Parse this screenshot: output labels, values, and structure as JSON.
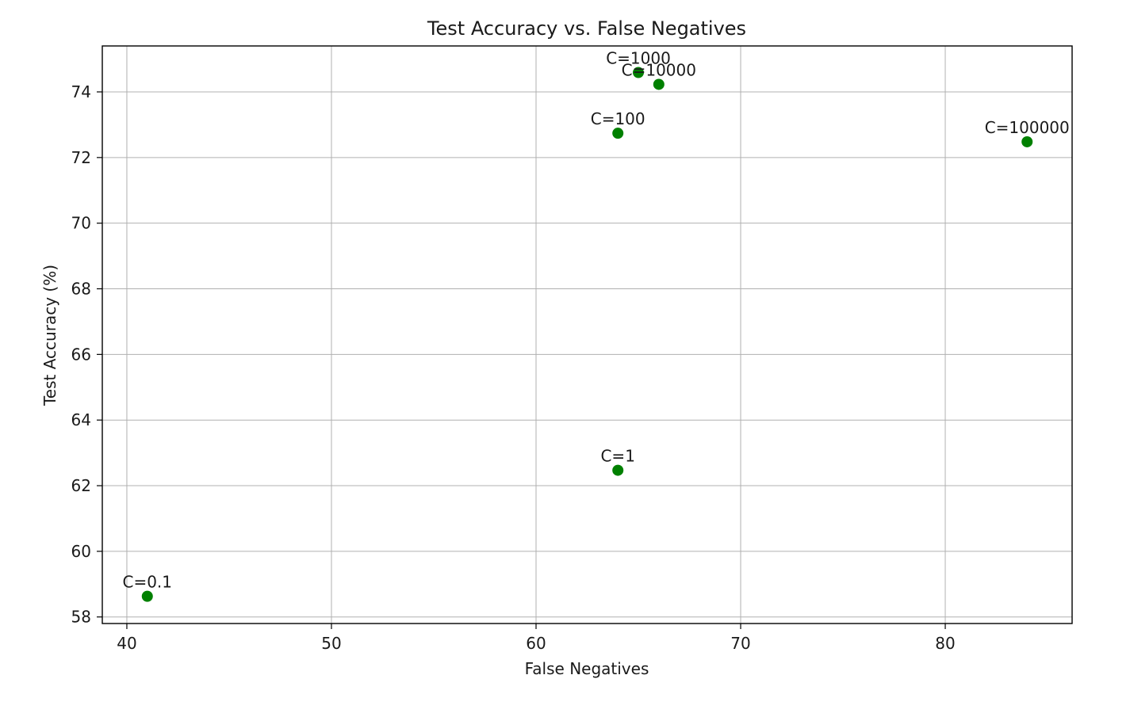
{
  "chart_data": {
    "type": "scatter",
    "title": "Test Accuracy vs. False Negatives",
    "xlabel": "False Negatives",
    "ylabel": "Test Accuracy (%)",
    "xlim": [
      38.8,
      86.2
    ],
    "ylim": [
      57.8,
      75.4
    ],
    "xticks": [
      40,
      50,
      60,
      70,
      80
    ],
    "yticks": [
      58,
      60,
      62,
      64,
      66,
      68,
      70,
      72,
      74
    ],
    "grid": true,
    "marker_color": "#008000",
    "points": [
      {
        "label": "C=0.1",
        "x": 41,
        "y": 58.63
      },
      {
        "label": "C=1",
        "x": 64,
        "y": 62.47
      },
      {
        "label": "C=100",
        "x": 64,
        "y": 72.74
      },
      {
        "label": "C=1000",
        "x": 65,
        "y": 74.59
      },
      {
        "label": "C=10000",
        "x": 66,
        "y": 74.23
      },
      {
        "label": "C=100000",
        "x": 84,
        "y": 72.48
      }
    ]
  }
}
